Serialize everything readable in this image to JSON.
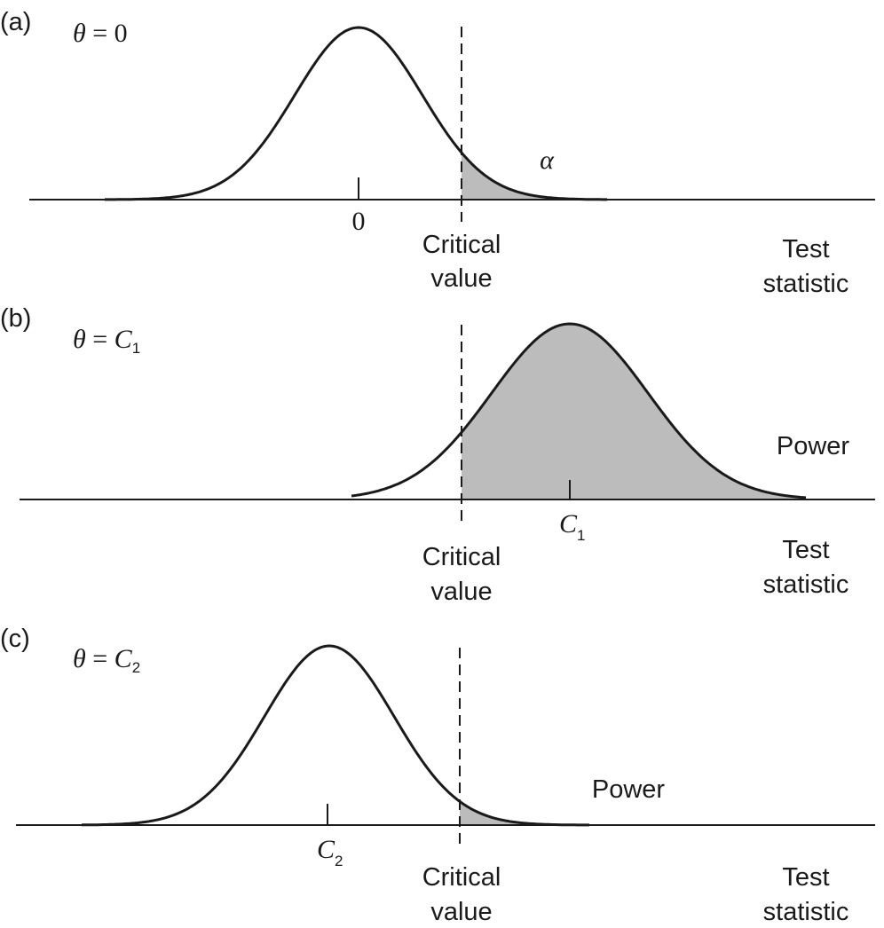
{
  "panels": [
    {
      "tag": "(a)",
      "theta_symbol": "θ",
      "theta_equals": " = ",
      "theta_value": "0",
      "theta_sub": "",
      "tick_label": "0",
      "tick_label_sub": "",
      "shaded_label": "α",
      "critical_line1": "Critical",
      "critical_line2": "value",
      "axis_line1": "Test",
      "axis_line2": "statistic"
    },
    {
      "tag": "(b)",
      "theta_symbol": "θ",
      "theta_equals": " = ",
      "theta_value": "C",
      "theta_sub": "1",
      "tick_label": "C",
      "tick_label_sub": "1",
      "shaded_label": "Power",
      "critical_line1": "Critical",
      "critical_line2": "value",
      "axis_line1": "Test",
      "axis_line2": "statistic"
    },
    {
      "tag": "(c)",
      "theta_symbol": "θ",
      "theta_equals": " = ",
      "theta_value": "C",
      "theta_sub": "2",
      "tick_label": "C",
      "tick_label_sub": "2",
      "shaded_label": "Power",
      "critical_line1": "Critical",
      "critical_line2": "value",
      "axis_line1": "Test",
      "axis_line2": "statistic"
    }
  ],
  "colors": {
    "shade": "#bcbcbc",
    "ink": "#1a1a1a"
  }
}
